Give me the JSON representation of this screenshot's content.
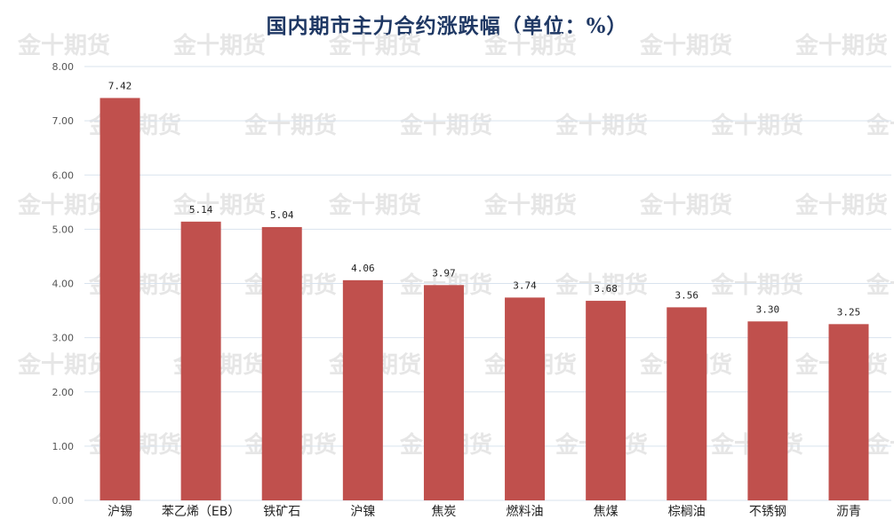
{
  "chart_data": {
    "type": "bar",
    "title": "国内期市主力合约涨跌幅（单位：%）",
    "categories": [
      "沪锡",
      "苯乙烯（EB）",
      "铁矿石",
      "沪镍",
      "焦炭",
      "燃料油",
      "焦煤",
      "棕榈油",
      "不锈钢",
      "沥青"
    ],
    "values": [
      7.42,
      5.14,
      5.04,
      4.06,
      3.97,
      3.74,
      3.68,
      3.56,
      3.3,
      3.25
    ],
    "value_labels": [
      "7.42",
      "5.14",
      "5.04",
      "4.06",
      "3.97",
      "3.74",
      "3.68",
      "3.56",
      "3.30",
      "3.25"
    ],
    "y_ticks": [
      "0.00",
      "1.00",
      "2.00",
      "3.00",
      "4.00",
      "5.00",
      "6.00",
      "7.00",
      "8.00"
    ],
    "ylim": [
      0,
      8
    ],
    "grid": true,
    "bar_color": "#c0504d",
    "grid_color": "#d9e3ee",
    "xlabel": "",
    "ylabel": ""
  },
  "watermark": "金十期货"
}
